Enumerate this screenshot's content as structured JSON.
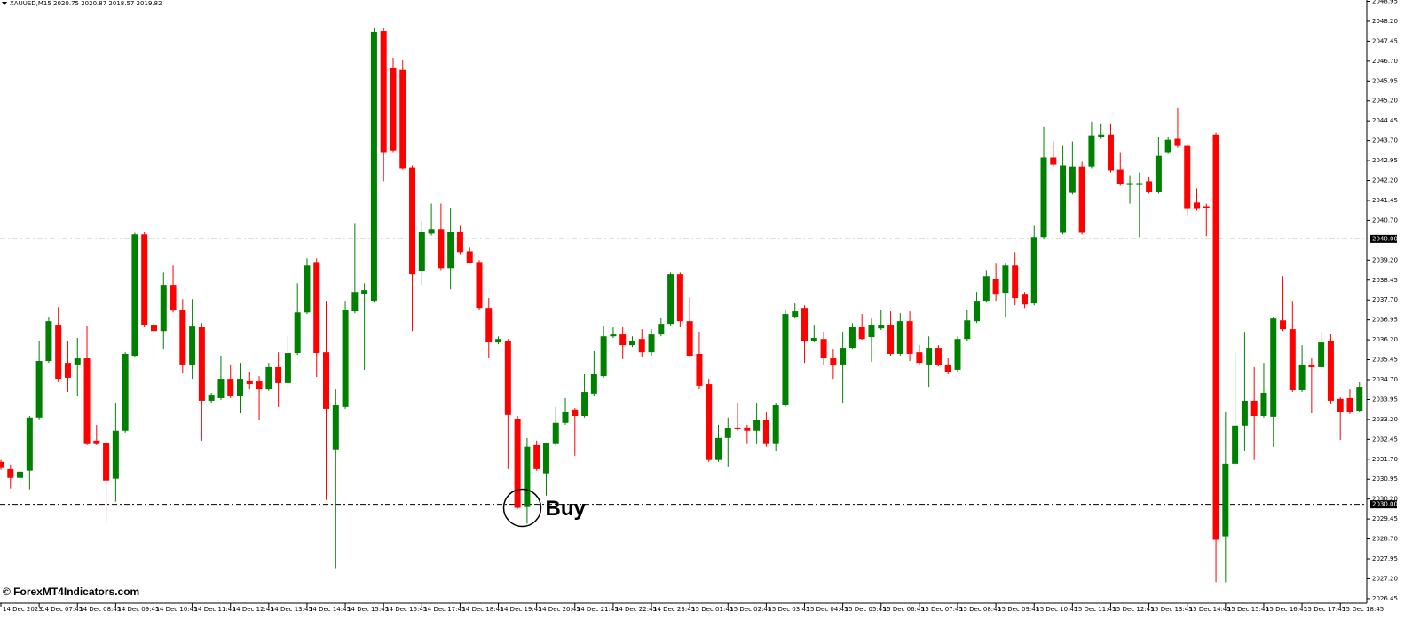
{
  "chart_data": {
    "type": "candlestick",
    "title": "XAUUSD,M15  2020.75 2020.87 2018.57 2019.82",
    "watermark": "© ForexMT4Indicators.com",
    "annotation": "Buy",
    "up_color": "#008000",
    "down_color": "#ff0000",
    "grid": false,
    "ylim": [
      2026.28,
      2049.0
    ],
    "yticks": [
      2026.45,
      {
        "value": 2027.2,
        "label": "2027.20"
      },
      2027.95,
      {
        "value": 2028.7,
        "label": "2028.70"
      },
      2029.45,
      {
        "value": 2030.2,
        "label": "2030.20"
      },
      2030.95,
      {
        "value": 2031.7,
        "label": "2031.70"
      },
      2032.45,
      {
        "value": 2033.2,
        "label": "2033.20"
      },
      2033.95,
      {
        "value": 2034.7,
        "label": "2034.70"
      },
      2035.45,
      {
        "value": 2036.2,
        "label": "2036.20"
      },
      2036.95,
      {
        "value": 2037.7,
        "label": "2037.70"
      },
      2038.45,
      {
        "value": 2039.2,
        "label": "2039.20"
      },
      {
        "value": 2040.7,
        "label": "2040.70"
      },
      2041.45,
      {
        "value": 2042.2,
        "label": "2042.20"
      },
      2042.95,
      {
        "value": 2043.7,
        "label": "2043.70"
      },
      2044.45,
      {
        "value": 2045.2,
        "label": "2045.20"
      },
      2045.95,
      {
        "value": 2046.7,
        "label": "2046.70"
      },
      2047.45,
      {
        "value": 2048.2,
        "label": "2048.20"
      },
      2048.95
    ],
    "hlines": [
      {
        "value": 2040,
        "label": "2040.00"
      },
      {
        "value": 2030,
        "label": "2030.00"
      }
    ],
    "categories": [
      "14 Dec 2023",
      null,
      null,
      null,
      "14 Dec 07:45",
      null,
      null,
      null,
      "14 Dec 08:45",
      null,
      null,
      null,
      "14 Dec 09:45",
      null,
      null,
      null,
      "14 Dec 10:45",
      null,
      null,
      null,
      "14 Dec 11:45",
      null,
      null,
      null,
      "14 Dec 12:45",
      null,
      null,
      null,
      "14 Dec 13:45",
      null,
      null,
      null,
      "14 Dec 14:45",
      null,
      null,
      null,
      "14 Dec 15:45",
      null,
      null,
      null,
      "14 Dec 16:45",
      null,
      null,
      null,
      "14 Dec 17:45",
      null,
      null,
      null,
      "14 Dec 18:45",
      null,
      null,
      null,
      "14 Dec 19:45",
      null,
      null,
      null,
      "14 Dec 20:45",
      null,
      null,
      null,
      "14 Dec 21:45",
      null,
      null,
      null,
      "14 Dec 22:45",
      null,
      null,
      null,
      "14 Dec 23:45",
      null,
      null,
      null,
      "15 Dec 01:45",
      null,
      null,
      null,
      "15 Dec 02:45",
      null,
      null,
      null,
      "15 Dec 03:45",
      null,
      null,
      null,
      "15 Dec 04:45",
      null,
      null,
      null,
      "15 Dec 05:45",
      null,
      null,
      null,
      "15 Dec 06:45",
      null,
      null,
      null,
      "15 Dec 07:45",
      null,
      null,
      null,
      "15 Dec 08:45",
      null,
      null,
      null,
      "15 Dec 09:45",
      null,
      null,
      null,
      "15 Dec 10:45",
      null,
      null,
      null,
      "15 Dec 11:45",
      null,
      null,
      null,
      "15 Dec 12:45",
      null,
      null,
      null,
      "15 Dec 13:45",
      null,
      null,
      null,
      "15 Dec 14:45",
      null,
      null,
      null,
      "15 Dec 15:45",
      null,
      null,
      null,
      "15 Dec 16:45",
      null,
      null,
      null,
      "15 Dec 17:45",
      null,
      null,
      null,
      "15 Dec 18:45",
      null,
      null
    ],
    "open": [
      2031.6,
      2031.33,
      2031.0,
      2031.27,
      2033.27,
      2035.4,
      2036.77,
      2035.33,
      2035.27,
      2035.5,
      2032.4,
      2032.33,
      2030.97,
      2032.77,
      2035.6,
      2040.17,
      2036.77,
      2036.53,
      2038.27,
      2037.33,
      2035.27,
      2036.67,
      2033.9,
      2034.0,
      2034.73,
      2034.07,
      2034.67,
      2034.63,
      2034.33,
      2035.17,
      2034.57,
      2035.7,
      2037.23,
      2039.13,
      2035.73,
      2032.07,
      2033.67,
      2037.27,
      2037.93,
      2037.67,
      2047.83,
      2046.43,
      2046.37,
      2042.7,
      2038.8,
      2040.2,
      2040.37,
      2038.9,
      2040.27,
      2039.53,
      2039.13,
      2037.4,
      2036.1,
      2036.17,
      2033.23,
      2029.9,
      2032.23,
      2031.17,
      2032.27,
      2033.07,
      2033.57,
      2033.33,
      2034.17,
      2034.83,
      2036.33,
      2036.4,
      2036.0,
      2036.23,
      2035.73,
      2036.4,
      2036.8,
      2038.67,
      2036.9,
      2035.67,
      2034.53,
      2031.67,
      2032.5,
      2032.9,
      2032.9,
      2032.77,
      2033.17,
      2032.27,
      2033.73,
      2037.07,
      2037.4,
      2036.17,
      2036.23,
      2035.5,
      2035.27,
      2035.9,
      2036.67,
      2036.3,
      2036.63,
      2036.77,
      2035.67,
      2036.9,
      2035.73,
      2035.27,
      2035.9,
      2035.27,
      2035.07,
      2036.23,
      2036.9,
      2037.67,
      2038.5,
      2037.97,
      2039.0,
      2037.9,
      2037.57,
      2040.07,
      2043.07,
      2040.23,
      2041.73,
      2042.73,
      2042.73,
      2043.83,
      2043.93,
      2042.6,
      2042.03,
      2042.03,
      2042.17,
      2041.77,
      2043.27,
      2043.77,
      2043.5,
      2041.37,
      2041.23,
      2043.93,
      2028.8,
      2031.53,
      2032.97,
      2033.9,
      2033.33,
      2033.3,
      2036.93,
      2036.6,
      2034.3,
      2035.27,
      2035.17,
      2036.17,
      2033.97,
      2034.0,
      2033.53
    ],
    "high": [
      2031.67,
      2031.5,
      2031.27,
      2033.33,
      2036.17,
      2037.07,
      2037.43,
      2036.17,
      2036.27,
      2036.73,
      2033.0,
      2032.4,
      2033.83,
      2035.73,
      2040.23,
      2040.27,
      2036.83,
      2038.73,
      2039.0,
      2037.73,
      2037.73,
      2036.83,
      2034.2,
      2035.6,
      2035.27,
      2035.33,
      2035.0,
      2034.83,
      2035.33,
      2035.73,
      2036.33,
      2038.33,
      2039.27,
      2039.27,
      2037.67,
      2034.33,
      2037.67,
      2040.6,
      2038.33,
      2047.93,
      2047.93,
      2046.83,
      2046.73,
      2042.77,
      2040.67,
      2041.33,
      2041.33,
      2041.17,
      2040.5,
      2039.67,
      2039.2,
      2037.77,
      2036.33,
      2036.23,
      2033.33,
      2032.5,
      2032.4,
      2032.33,
      2033.67,
      2034.0,
      2033.63,
      2034.9,
      2035.77,
      2036.73,
      2036.67,
      2036.67,
      2036.33,
      2036.6,
      2036.6,
      2037.03,
      2038.73,
      2038.73,
      2037.8,
      2036.5,
      2034.73,
      2033.0,
      2033.27,
      2033.83,
      2033.0,
      2033.83,
      2033.47,
      2033.83,
      2037.33,
      2037.57,
      2037.5,
      2036.77,
      2036.5,
      2035.83,
      2036.5,
      2036.83,
      2037.17,
      2037.0,
      2037.33,
      2037.27,
      2037.2,
      2037.27,
      2036.0,
      2036.33,
      2036.0,
      2035.5,
      2036.33,
      2037.33,
      2038.0,
      2038.83,
      2039.07,
      2039.07,
      2039.5,
      2038.0,
      2040.5,
      2044.23,
      2043.67,
      2043.5,
      2043.67,
      2042.9,
      2044.43,
      2044.33,
      2044.33,
      2043.27,
      2042.4,
      2042.5,
      2042.33,
      2043.83,
      2043.83,
      2044.93,
      2043.57,
      2041.9,
      2041.33,
      2044.0,
      2033.5,
      2035.73,
      2036.5,
      2035.17,
      2035.33,
      2037.07,
      2038.6,
      2037.67,
      2036.0,
      2035.5,
      2036.5,
      2036.43,
      2034.03,
      2034.33,
      2034.6
    ],
    "low": [
      2031.3,
      2030.6,
      2030.6,
      2030.57,
      2033.2,
      2035.33,
      2034.6,
      2034.23,
      2034.07,
      2032.23,
      2032.23,
      2029.33,
      2030.1,
      2032.7,
      2035.53,
      2036.67,
      2035.53,
      2035.83,
      2037.23,
      2034.93,
      2034.73,
      2032.4,
      2033.83,
      2033.93,
      2034.0,
      2033.43,
      2034.33,
      2033.17,
      2034.27,
      2033.67,
      2034.5,
      2035.63,
      2037.17,
      2034.8,
      2030.17,
      2027.6,
      2033.6,
      2037.2,
      2035.07,
      2037.6,
      2042.17,
      2043.27,
      2042.6,
      2036.53,
      2038.27,
      2040.13,
      2038.83,
      2038.1,
      2039.43,
      2039.07,
      2037.33,
      2035.5,
      2036.03,
      2031.33,
      2029.83,
      2029.27,
      2031.27,
      2030.33,
      2032.2,
      2033.0,
      2031.83,
      2033.27,
      2034.1,
      2034.77,
      2036.27,
      2035.47,
      2035.93,
      2035.57,
      2035.6,
      2036.33,
      2036.73,
      2036.67,
      2035.53,
      2034.33,
      2031.6,
      2031.6,
      2031.43,
      2032.77,
      2032.27,
      2032.27,
      2032.17,
      2032.0,
      2033.67,
      2037.0,
      2035.33,
      2036.1,
      2035.27,
      2034.73,
      2033.83,
      2035.83,
      2036.2,
      2035.37,
      2036.57,
      2035.6,
      2035.6,
      2035.4,
      2035.27,
      2034.43,
      2035.2,
      2034.9,
      2035.0,
      2036.17,
      2036.83,
      2037.6,
      2037.67,
      2037.07,
      2037.5,
      2037.4,
      2037.5,
      2040.0,
      2042.73,
      2040.17,
      2041.67,
      2040.17,
      2042.67,
      2043.77,
      2042.5,
      2042.0,
      2041.33,
      2040.07,
      2041.7,
      2041.7,
      2043.2,
      2043.43,
      2040.9,
      2041.07,
      2040.1,
      2027.07,
      2027.07,
      2031.47,
      2032.0,
      2031.67,
      2033.27,
      2032.17,
      2036.53,
      2034.23,
      2034.23,
      2033.43,
      2035.1,
      2033.8,
      2032.43,
      2033.4,
      2033.47
    ],
    "close": [
      2031.37,
      2031.0,
      2031.23,
      2033.27,
      2035.4,
      2036.9,
      2034.73,
      2034.77,
      2035.5,
      2032.27,
      2032.27,
      2030.9,
      2032.77,
      2035.67,
      2040.17,
      2036.77,
      2036.53,
      2038.27,
      2037.3,
      2035.27,
      2036.7,
      2033.9,
      2034.13,
      2034.73,
      2034.07,
      2034.73,
      2034.53,
      2034.33,
      2035.17,
      2034.57,
      2035.7,
      2037.23,
      2039.0,
      2035.7,
      2033.6,
      2033.73,
      2037.33,
      2038.0,
      2038.07,
      2047.8,
      2043.27,
      2043.33,
      2042.67,
      2038.67,
      2040.27,
      2040.37,
      2038.9,
      2040.27,
      2039.5,
      2039.1,
      2037.4,
      2036.1,
      2036.23,
      2033.37,
      2029.87,
      2032.17,
      2031.33,
      2032.3,
      2033.07,
      2033.47,
      2033.33,
      2034.23,
      2034.9,
      2036.33,
      2036.4,
      2036.0,
      2036.17,
      2035.73,
      2036.4,
      2036.8,
      2038.67,
      2036.9,
      2035.6,
      2034.47,
      2031.67,
      2032.5,
      2032.87,
      2032.83,
      2032.77,
      2033.17,
      2032.27,
      2033.73,
      2037.17,
      2037.27,
      2036.17,
      2036.27,
      2035.5,
      2035.23,
      2035.9,
      2036.67,
      2036.23,
      2036.77,
      2036.77,
      2035.67,
      2036.9,
      2035.67,
      2035.33,
      2035.9,
      2035.27,
      2035.0,
      2036.23,
      2036.93,
      2037.67,
      2038.6,
      2037.9,
      2039.0,
      2037.77,
      2037.53,
      2040.07,
      2043.07,
      2042.8,
      2042.77,
      2042.73,
      2040.23,
      2043.9,
      2043.93,
      2042.57,
      2042.07,
      2042.1,
      2042.1,
      2041.77,
      2043.13,
      2043.73,
      2043.5,
      2041.13,
      2041.13,
      2041.17,
      2028.67,
      2031.53,
      2032.97,
      2033.9,
      2033.33,
      2034.2,
      2037.0,
      2036.6,
      2034.3,
      2035.27,
      2035.17,
      2036.1,
      2033.9,
      2033.47,
      2033.47,
      2034.43
    ]
  }
}
